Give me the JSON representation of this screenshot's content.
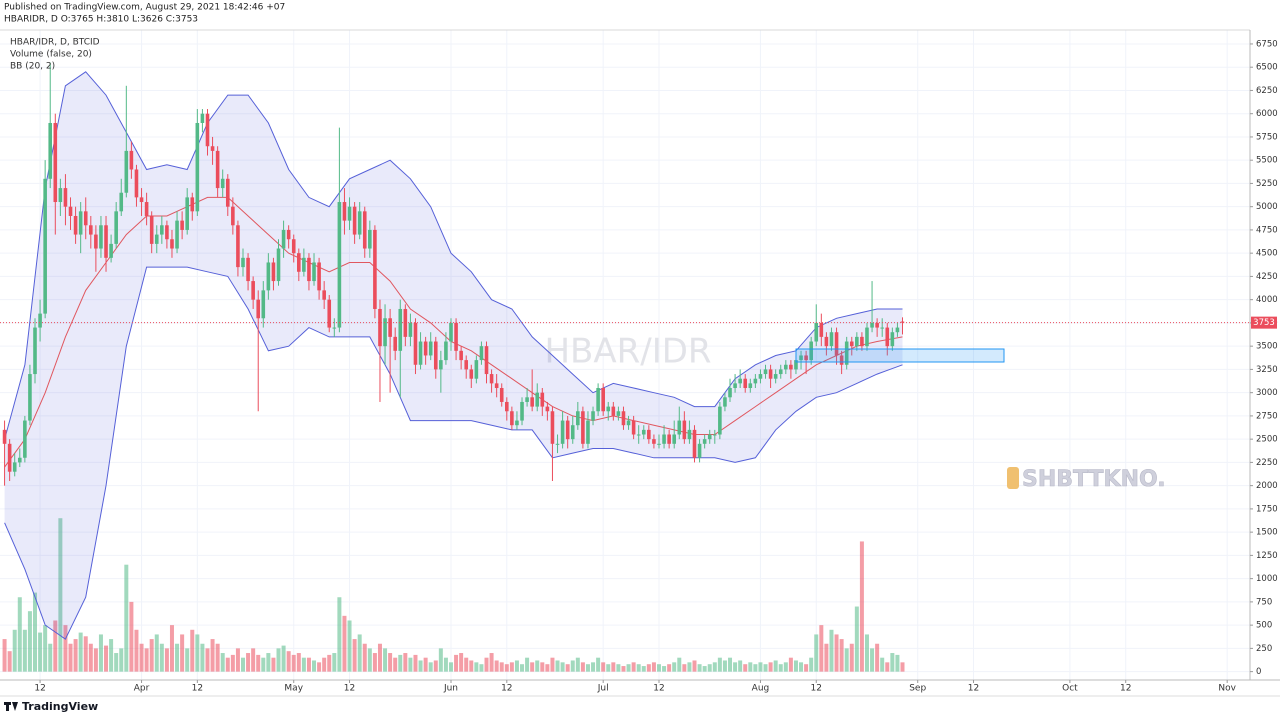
{
  "header": {
    "published": "Published on TradingView.com, August 29, 2021 18:42:46 +07",
    "symbol_line": "HBARIDR, D O:3765 H:3810 L:3626 C:3753"
  },
  "footer": {
    "brand": "TradingView"
  },
  "stamp": "SHBTTKNO.",
  "chart_data": {
    "type": "candlestick",
    "legend": [
      "HBAR/IDR, D, BTCID",
      "Volume (false, 20)",
      "BB (20, 2)"
    ],
    "watermark": "HBAR/IDR",
    "up_color": "#53b987",
    "down_color": "#eb4d5c",
    "grid": true,
    "xlim": [
      3.1,
      249.5
    ],
    "xticks": [
      {
        "value": 11,
        "label": "12"
      },
      {
        "value": 31,
        "label": "Apr"
      },
      {
        "value": 42,
        "label": "12"
      },
      {
        "value": 61,
        "label": "May"
      },
      {
        "value": 72,
        "label": "12"
      },
      {
        "value": 92,
        "label": "Jun"
      },
      {
        "value": 103,
        "label": "12"
      },
      {
        "value": 122,
        "label": "Jul"
      },
      {
        "value": 133,
        "label": "12"
      },
      {
        "value": 153,
        "label": "Aug"
      },
      {
        "value": 164,
        "label": "12"
      },
      {
        "value": 184,
        "label": "Sep"
      },
      {
        "value": 195,
        "label": "12"
      },
      {
        "value": 214,
        "label": "Oct"
      },
      {
        "value": 225,
        "label": "12"
      },
      {
        "value": 245,
        "label": "Nov"
      }
    ],
    "ylim": [
      -90,
      6900
    ],
    "yticks": [
      0,
      250,
      500,
      750,
      1000,
      1250,
      1500,
      1750,
      2000,
      2250,
      2500,
      2750,
      3000,
      3250,
      3500,
      3750,
      4000,
      4250,
      4500,
      4750,
      5000,
      5250,
      5500,
      5750,
      6000,
      6250,
      6500,
      6750
    ],
    "x": [
      4,
      5,
      6,
      7,
      8,
      9,
      10,
      11,
      12,
      13,
      14,
      15,
      16,
      17,
      18,
      19,
      20,
      21,
      22,
      23,
      24,
      25,
      26,
      27,
      28,
      29,
      30,
      31,
      32,
      33,
      34,
      35,
      36,
      37,
      38,
      39,
      40,
      41,
      42,
      43,
      44,
      45,
      46,
      47,
      48,
      49,
      50,
      51,
      52,
      53,
      54,
      55,
      56,
      57,
      58,
      59,
      60,
      61,
      62,
      63,
      64,
      65,
      66,
      67,
      68,
      69,
      70,
      71,
      72,
      73,
      74,
      75,
      76,
      77,
      78,
      79,
      80,
      81,
      82,
      83,
      84,
      85,
      86,
      87,
      88,
      89,
      90,
      91,
      92,
      93,
      94,
      95,
      96,
      97,
      98,
      99,
      100,
      101,
      102,
      103,
      104,
      105,
      106,
      107,
      108,
      109,
      110,
      111,
      112,
      113,
      114,
      115,
      116,
      117,
      118,
      119,
      120,
      121,
      122,
      123,
      124,
      125,
      126,
      127,
      128,
      129,
      130,
      131,
      132,
      133,
      134,
      135,
      136,
      137,
      138,
      139,
      140,
      141,
      142,
      143,
      144,
      145,
      146,
      147,
      148,
      149,
      150,
      151,
      152,
      153,
      154,
      155,
      156,
      157,
      158,
      159,
      160,
      161,
      162,
      163,
      164,
      165,
      166,
      167,
      168,
      169,
      170,
      171,
      172,
      173,
      174,
      175,
      176,
      177,
      178,
      179,
      180,
      181
    ],
    "open": [
      2600,
      2450,
      2150,
      2250,
      2300,
      2700,
      3200,
      3700,
      3850,
      5300,
      5900,
      5050,
      5200,
      5000,
      4900,
      4700,
      4950,
      4800,
      4700,
      4550,
      4800,
      4450,
      4600,
      4950,
      5150,
      5600,
      5400,
      5100,
      5050,
      4900,
      4600,
      4700,
      4800,
      4650,
      4550,
      4850,
      4750,
      5100,
      4950,
      5900,
      6000,
      5650,
      5600,
      5200,
      5300,
      5000,
      4800,
      4350,
      4450,
      4200,
      4000,
      3800,
      4100,
      4400,
      4200,
      4550,
      4750,
      4650,
      4500,
      4300,
      4450,
      4200,
      4400,
      4100,
      4000,
      3700,
      3700,
      5050,
      4850,
      5000,
      4700,
      4950,
      4550,
      4750,
      3900,
      3500,
      3800,
      3600,
      3450,
      3900,
      3600,
      3750,
      3300,
      3550,
      3400,
      3550,
      3250,
      3350,
      3550,
      3750,
      3450,
      3350,
      3250,
      3150,
      3350,
      3500,
      3200,
      3100,
      3050,
      2900,
      2800,
      2650,
      2700,
      2900,
      2950,
      2850,
      3000,
      2850,
      2800,
      2450,
      2450,
      2700,
      2500,
      2650,
      2800,
      2450,
      2700,
      2800,
      3050,
      2800,
      2850,
      2750,
      2800,
      2650,
      2700,
      2550,
      2550,
      2600,
      2500,
      2450,
      2450,
      2550,
      2450,
      2550,
      2700,
      2500,
      2600,
      2300,
      2450,
      2500,
      2550,
      2550,
      2850,
      2950,
      3050,
      3100,
      3150,
      3050,
      3100,
      3150,
      3200,
      3250,
      3150,
      3200,
      3250,
      3300,
      3250,
      3350,
      3400,
      3350,
      3550,
      3750,
      3600,
      3500,
      3650,
      3400,
      3300,
      3550,
      3500,
      3600,
      3500,
      3700,
      3750,
      3700,
      3700,
      3500,
      3650,
      3765
    ],
    "high": [
      2700,
      2500,
      2350,
      2400,
      2750,
      3300,
      3800,
      4000,
      5500,
      6550,
      6000,
      5300,
      5350,
      5100,
      5000,
      5050,
      5100,
      4900,
      4800,
      4900,
      4900,
      4700,
      5050,
      5300,
      6300,
      5700,
      5450,
      5200,
      5150,
      4950,
      4800,
      4900,
      4850,
      4750,
      4950,
      4950,
      5200,
      5150,
      6050,
      6050,
      6050,
      5750,
      5650,
      5400,
      5350,
      5100,
      4850,
      4550,
      4500,
      4250,
      4100,
      4200,
      4500,
      4450,
      4650,
      4850,
      4800,
      4700,
      4550,
      4550,
      4500,
      4500,
      4450,
      4200,
      4050,
      3800,
      5850,
      5200,
      5100,
      5050,
      5050,
      5000,
      4850,
      4800,
      4000,
      3950,
      3900,
      3700,
      4000,
      3950,
      3850,
      3800,
      3650,
      3600,
      3650,
      3600,
      3450,
      3650,
      3800,
      3800,
      3500,
      3400,
      3300,
      3400,
      3550,
      3550,
      3250,
      3200,
      3100,
      2950,
      2850,
      2800,
      2950,
      3050,
      3250,
      3100,
      3050,
      2900,
      2850,
      2550,
      2800,
      2750,
      2750,
      2900,
      2850,
      2800,
      2850,
      3100,
      3100,
      2900,
      2900,
      2850,
      2850,
      2750,
      2750,
      2650,
      2650,
      2650,
      2550,
      2550,
      2650,
      2600,
      2700,
      2850,
      2800,
      2700,
      2650,
      2500,
      2550,
      2600,
      2600,
      2900,
      3000,
      3150,
      3200,
      3250,
      3200,
      3150,
      3200,
      3250,
      3300,
      3300,
      3250,
      3300,
      3350,
      3350,
      3400,
      3450,
      3450,
      3600,
      3950,
      3850,
      3650,
      3700,
      3700,
      3450,
      3600,
      3600,
      3650,
      3650,
      3750,
      4200,
      3800,
      3800,
      3750,
      3700,
      3750,
      3810
    ],
    "low": [
      2000,
      2050,
      2100,
      2200,
      2250,
      2650,
      3100,
      3550,
      3800,
      5200,
      4700,
      4900,
      4800,
      4750,
      4600,
      4500,
      4650,
      4550,
      4300,
      4450,
      4300,
      4400,
      4550,
      4900,
      5100,
      5300,
      5000,
      4900,
      4800,
      4500,
      4500,
      4600,
      4550,
      4450,
      4500,
      4650,
      4700,
      4850,
      4900,
      5800,
      5550,
      5450,
      5100,
      5100,
      4900,
      4700,
      4250,
      4250,
      4100,
      3900,
      2800,
      3700,
      4000,
      4100,
      4150,
      4450,
      4550,
      4400,
      4200,
      4250,
      4100,
      4150,
      4000,
      3900,
      3650,
      3600,
      3650,
      4700,
      4750,
      4600,
      4650,
      4450,
      4450,
      3800,
      2900,
      3300,
      3000,
      3350,
      2950,
      3500,
      3500,
      3200,
      3250,
      3300,
      3350,
      3150,
      3000,
      3300,
      3450,
      3350,
      3250,
      3150,
      3050,
      3100,
      3300,
      3100,
      3000,
      2950,
      2850,
      2700,
      2600,
      2600,
      2650,
      2850,
      2800,
      2800,
      2750,
      2700,
      2050,
      2350,
      2400,
      2400,
      2450,
      2600,
      2400,
      2400,
      2650,
      2750,
      2750,
      2700,
      2700,
      2700,
      2600,
      2600,
      2500,
      2450,
      2500,
      2450,
      2400,
      2400,
      2400,
      2400,
      2400,
      2500,
      2450,
      2450,
      2250,
      2250,
      2400,
      2450,
      2450,
      2500,
      2800,
      2900,
      3000,
      3050,
      3000,
      3000,
      3050,
      3100,
      3150,
      3050,
      3100,
      3150,
      3200,
      3150,
      3200,
      3250,
      3200,
      3300,
      3500,
      3500,
      3400,
      3450,
      3300,
      3200,
      3250,
      3400,
      3450,
      3450,
      3450,
      3650,
      3600,
      3600,
      3400,
      3450,
      3600,
      3626
    ],
    "close": [
      2450,
      2150,
      2250,
      2300,
      2700,
      3200,
      3700,
      3850,
      5300,
      5900,
      5050,
      5200,
      5000,
      4900,
      4700,
      4950,
      4800,
      4700,
      4550,
      4800,
      4450,
      4600,
      4950,
      5150,
      5600,
      5400,
      5100,
      5050,
      4900,
      4600,
      4700,
      4800,
      4650,
      4550,
      4850,
      4750,
      5100,
      4950,
      5900,
      6000,
      5650,
      5600,
      5200,
      5300,
      5000,
      4800,
      4350,
      4450,
      4200,
      4000,
      3800,
      4100,
      4400,
      4200,
      4550,
      4750,
      4650,
      4500,
      4300,
      4450,
      4200,
      4400,
      4100,
      4000,
      3700,
      3700,
      5050,
      4850,
      5000,
      4700,
      4950,
      4550,
      4750,
      3900,
      3500,
      3800,
      3600,
      3450,
      3900,
      3600,
      3750,
      3300,
      3550,
      3400,
      3550,
      3250,
      3350,
      3550,
      3750,
      3450,
      3350,
      3250,
      3150,
      3350,
      3500,
      3200,
      3100,
      3050,
      2900,
      2800,
      2650,
      2700,
      2900,
      2950,
      2850,
      3000,
      2850,
      2800,
      2450,
      2450,
      2700,
      2500,
      2650,
      2800,
      2450,
      2700,
      2800,
      3050,
      2800,
      2850,
      2750,
      2800,
      2650,
      2700,
      2550,
      2550,
      2600,
      2500,
      2450,
      2450,
      2550,
      2450,
      2550,
      2700,
      2500,
      2600,
      2300,
      2450,
      2500,
      2550,
      2550,
      2850,
      2950,
      3050,
      3100,
      3150,
      3050,
      3100,
      3150,
      3200,
      3250,
      3150,
      3200,
      3250,
      3300,
      3250,
      3350,
      3400,
      3350,
      3550,
      3750,
      3600,
      3500,
      3650,
      3400,
      3300,
      3550,
      3500,
      3600,
      3500,
      3700,
      3750,
      3700,
      3700,
      3500,
      3650,
      3700,
      3753
    ],
    "volume": [
      350,
      220,
      450,
      800,
      450,
      650,
      850,
      420,
      500,
      300,
      550,
      1650,
      500,
      300,
      350,
      420,
      380,
      300,
      250,
      400,
      280,
      350,
      200,
      250,
      1150,
      750,
      450,
      300,
      250,
      350,
      400,
      300,
      250,
      500,
      300,
      400,
      250,
      450,
      400,
      300,
      250,
      350,
      300,
      200,
      150,
      180,
      250,
      150,
      200,
      250,
      180,
      150,
      200,
      150,
      250,
      280,
      220,
      180,
      200,
      150,
      150,
      120,
      100,
      150,
      180,
      200,
      800,
      600,
      550,
      350,
      400,
      300,
      250,
      200,
      300,
      250,
      200,
      150,
      180,
      200,
      150,
      180,
      120,
      150,
      100,
      120,
      250,
      150,
      100,
      180,
      200,
      150,
      120,
      100,
      80,
      150,
      200,
      120,
      100,
      80,
      100,
      120,
      80,
      150,
      100,
      120,
      100,
      80,
      150,
      120,
      100,
      80,
      120,
      150,
      100,
      80,
      100,
      150,
      100,
      80,
      100,
      80,
      60,
      80,
      100,
      80,
      60,
      80,
      100,
      80,
      60,
      80,
      100,
      150,
      80,
      100,
      120,
      80,
      60,
      80,
      100,
      150,
      120,
      150,
      100,
      120,
      80,
      100,
      80,
      100,
      80,
      100,
      120,
      80,
      100,
      150,
      120,
      100,
      80,
      150,
      400,
      500,
      300,
      450,
      400,
      350,
      250,
      300,
      700,
      1400,
      400,
      250,
      300,
      150,
      100,
      200,
      180,
      100
    ],
    "bollinger": {
      "color": "#5560d8",
      "basis_color": "#e0575f",
      "x": [
        4,
        8,
        12,
        16,
        20,
        24,
        28,
        32,
        36,
        40,
        44,
        48,
        52,
        56,
        60,
        64,
        68,
        72,
        76,
        80,
        84,
        88,
        92,
        96,
        100,
        104,
        108,
        112,
        116,
        120,
        124,
        128,
        132,
        136,
        140,
        144,
        148,
        152,
        156,
        160,
        164,
        168,
        172,
        176,
        181
      ],
      "upper": [
        2500,
        3300,
        5200,
        6300,
        6450,
        6200,
        5800,
        5400,
        5450,
        5400,
        5900,
        6200,
        6200,
        5900,
        5400,
        5100,
        5000,
        5300,
        5400,
        5500,
        5300,
        5000,
        4500,
        4300,
        4000,
        3900,
        3600,
        3400,
        3200,
        3000,
        3100,
        3050,
        3000,
        2950,
        2850,
        2850,
        3150,
        3300,
        3400,
        3450,
        3700,
        3800,
        3850,
        3900,
        3900
      ],
      "basis": [
        2200,
        2500,
        3000,
        3600,
        4100,
        4400,
        4700,
        4900,
        4900,
        5000,
        5100,
        5100,
        4900,
        4700,
        4500,
        4400,
        4300,
        4400,
        4400,
        4200,
        3900,
        3750,
        3550,
        3450,
        3300,
        3150,
        3000,
        2850,
        2750,
        2700,
        2750,
        2700,
        2650,
        2600,
        2550,
        2550,
        2700,
        2850,
        3000,
        3150,
        3300,
        3400,
        3500,
        3550,
        3600
      ],
      "lower": [
        1600,
        1100,
        500,
        350,
        800,
        2000,
        3500,
        4350,
        4350,
        4350,
        4300,
        4250,
        3900,
        3450,
        3500,
        3700,
        3600,
        3600,
        3600,
        3200,
        2700,
        2700,
        2700,
        2700,
        2650,
        2600,
        2600,
        2300,
        2350,
        2400,
        2400,
        2350,
        2300,
        2300,
        2300,
        2300,
        2250,
        2300,
        2600,
        2800,
        2950,
        3000,
        3100,
        3200,
        3300
      ]
    }
  }
}
